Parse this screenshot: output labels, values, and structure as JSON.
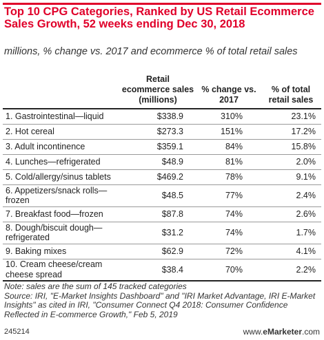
{
  "header": {
    "title": "Top 10 CPG Categories, Ranked by US Retail Ecommerce Sales Growth, 52 weeks ending Dec 30, 2018",
    "subtitle": "millions, % change vs. 2017 and ecommerce % of total retail sales"
  },
  "colors": {
    "accent": "#e0002a",
    "text": "#222222"
  },
  "chart_data": {
    "type": "table",
    "title": "Top 10 CPG Categories, Ranked by US Retail Ecommerce Sales Growth, 52 weeks ending Dec 30, 2018",
    "subtitle": "millions, % change vs. 2017 and ecommerce % of total retail sales",
    "columns": [
      "",
      "Retail ecommerce sales (millions)",
      "% change vs. 2017",
      "% of total retail sales"
    ],
    "rows": [
      {
        "category": "1. Gastrointestinal—liquid",
        "sales": "$338.9",
        "change": "310%",
        "share": "23.1%"
      },
      {
        "category": "2. Hot cereal",
        "sales": "$273.3",
        "change": "151%",
        "share": "17.2%"
      },
      {
        "category": "3. Adult incontinence",
        "sales": "$359.1",
        "change": "84%",
        "share": "15.8%"
      },
      {
        "category": "4. Lunches—refrigerated",
        "sales": "$48.9",
        "change": "81%",
        "share": "2.0%"
      },
      {
        "category": "5. Cold/allergy/sinus tablets",
        "sales": "$469.2",
        "change": "78%",
        "share": "9.1%"
      },
      {
        "category": "6. Appetizers/snack rolls—frozen",
        "sales": "$48.5",
        "change": "77%",
        "share": "2.4%"
      },
      {
        "category": "7. Breakfast food—frozen",
        "sales": "$87.8",
        "change": "74%",
        "share": "2.6%"
      },
      {
        "category": "8. Dough/biscuit dough—refrigerated",
        "sales": "$31.2",
        "change": "74%",
        "share": "1.7%"
      },
      {
        "category": "9. Baking mixes",
        "sales": "$62.9",
        "change": "72%",
        "share": "4.1%"
      },
      {
        "category": "10. Cream cheese/cream cheese spread",
        "sales": "$38.4",
        "change": "70%",
        "share": "2.2%"
      }
    ]
  },
  "footer": {
    "note": "Note: sales are the sum of 145 tracked categories",
    "source": "Source: IRI, \"E-Market Insights Dashboard\" and \"IRI Market Advantage, IRI E-Market Insights\" as cited in IRI, \"Consumer Connect Q4 2018: Consumer Confidence Reflected in E-commerce Growth,\" Feb 5, 2019",
    "chart_id": "245214",
    "brand_prefix": "www.",
    "brand_name": "eMarketer",
    "brand_suffix": ".com"
  }
}
